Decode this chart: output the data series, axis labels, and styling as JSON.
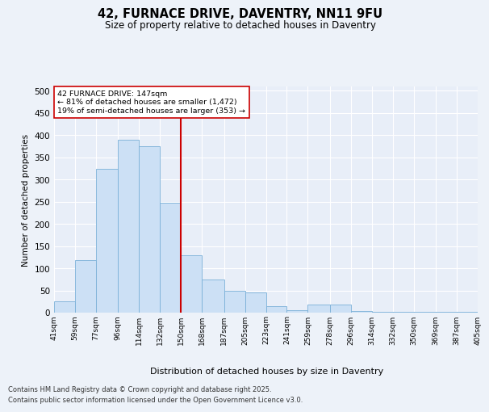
{
  "title1": "42, FURNACE DRIVE, DAVENTRY, NN11 9FU",
  "title2": "Size of property relative to detached houses in Daventry",
  "xlabel": "Distribution of detached houses by size in Daventry",
  "ylabel": "Number of detached properties",
  "bin_edges": [
    41,
    59,
    77,
    96,
    114,
    132,
    150,
    168,
    187,
    205,
    223,
    241,
    259,
    278,
    296,
    314,
    332,
    350,
    369,
    387,
    405
  ],
  "bin_labels": [
    "41sqm",
    "59sqm",
    "77sqm",
    "96sqm",
    "114sqm",
    "132sqm",
    "150sqm",
    "168sqm",
    "187sqm",
    "205sqm",
    "223sqm",
    "241sqm",
    "259sqm",
    "278sqm",
    "296sqm",
    "314sqm",
    "332sqm",
    "350sqm",
    "369sqm",
    "387sqm",
    "405sqm"
  ],
  "counts": [
    25,
    118,
    325,
    390,
    375,
    247,
    130,
    75,
    50,
    45,
    15,
    5,
    18,
    18,
    3,
    2,
    2,
    2,
    2,
    2
  ],
  "bar_color": "#cce0f5",
  "bar_edge_color": "#7ab0d8",
  "vline_x": 150,
  "vline_color": "#cc0000",
  "annotation_text": "42 FURNACE DRIVE: 147sqm\n← 81% of detached houses are smaller (1,472)\n19% of semi-detached houses are larger (353) →",
  "annotation_box_facecolor": "#ffffff",
  "annotation_box_edgecolor": "#cc0000",
  "ylim": [
    0,
    510
  ],
  "yticks": [
    0,
    50,
    100,
    150,
    200,
    250,
    300,
    350,
    400,
    450,
    500
  ],
  "plot_bg": "#e8eef8",
  "fig_bg": "#edf2f9",
  "grid_color": "#ffffff",
  "footnote1": "Contains HM Land Registry data © Crown copyright and database right 2025.",
  "footnote2": "Contains public sector information licensed under the Open Government Licence v3.0."
}
